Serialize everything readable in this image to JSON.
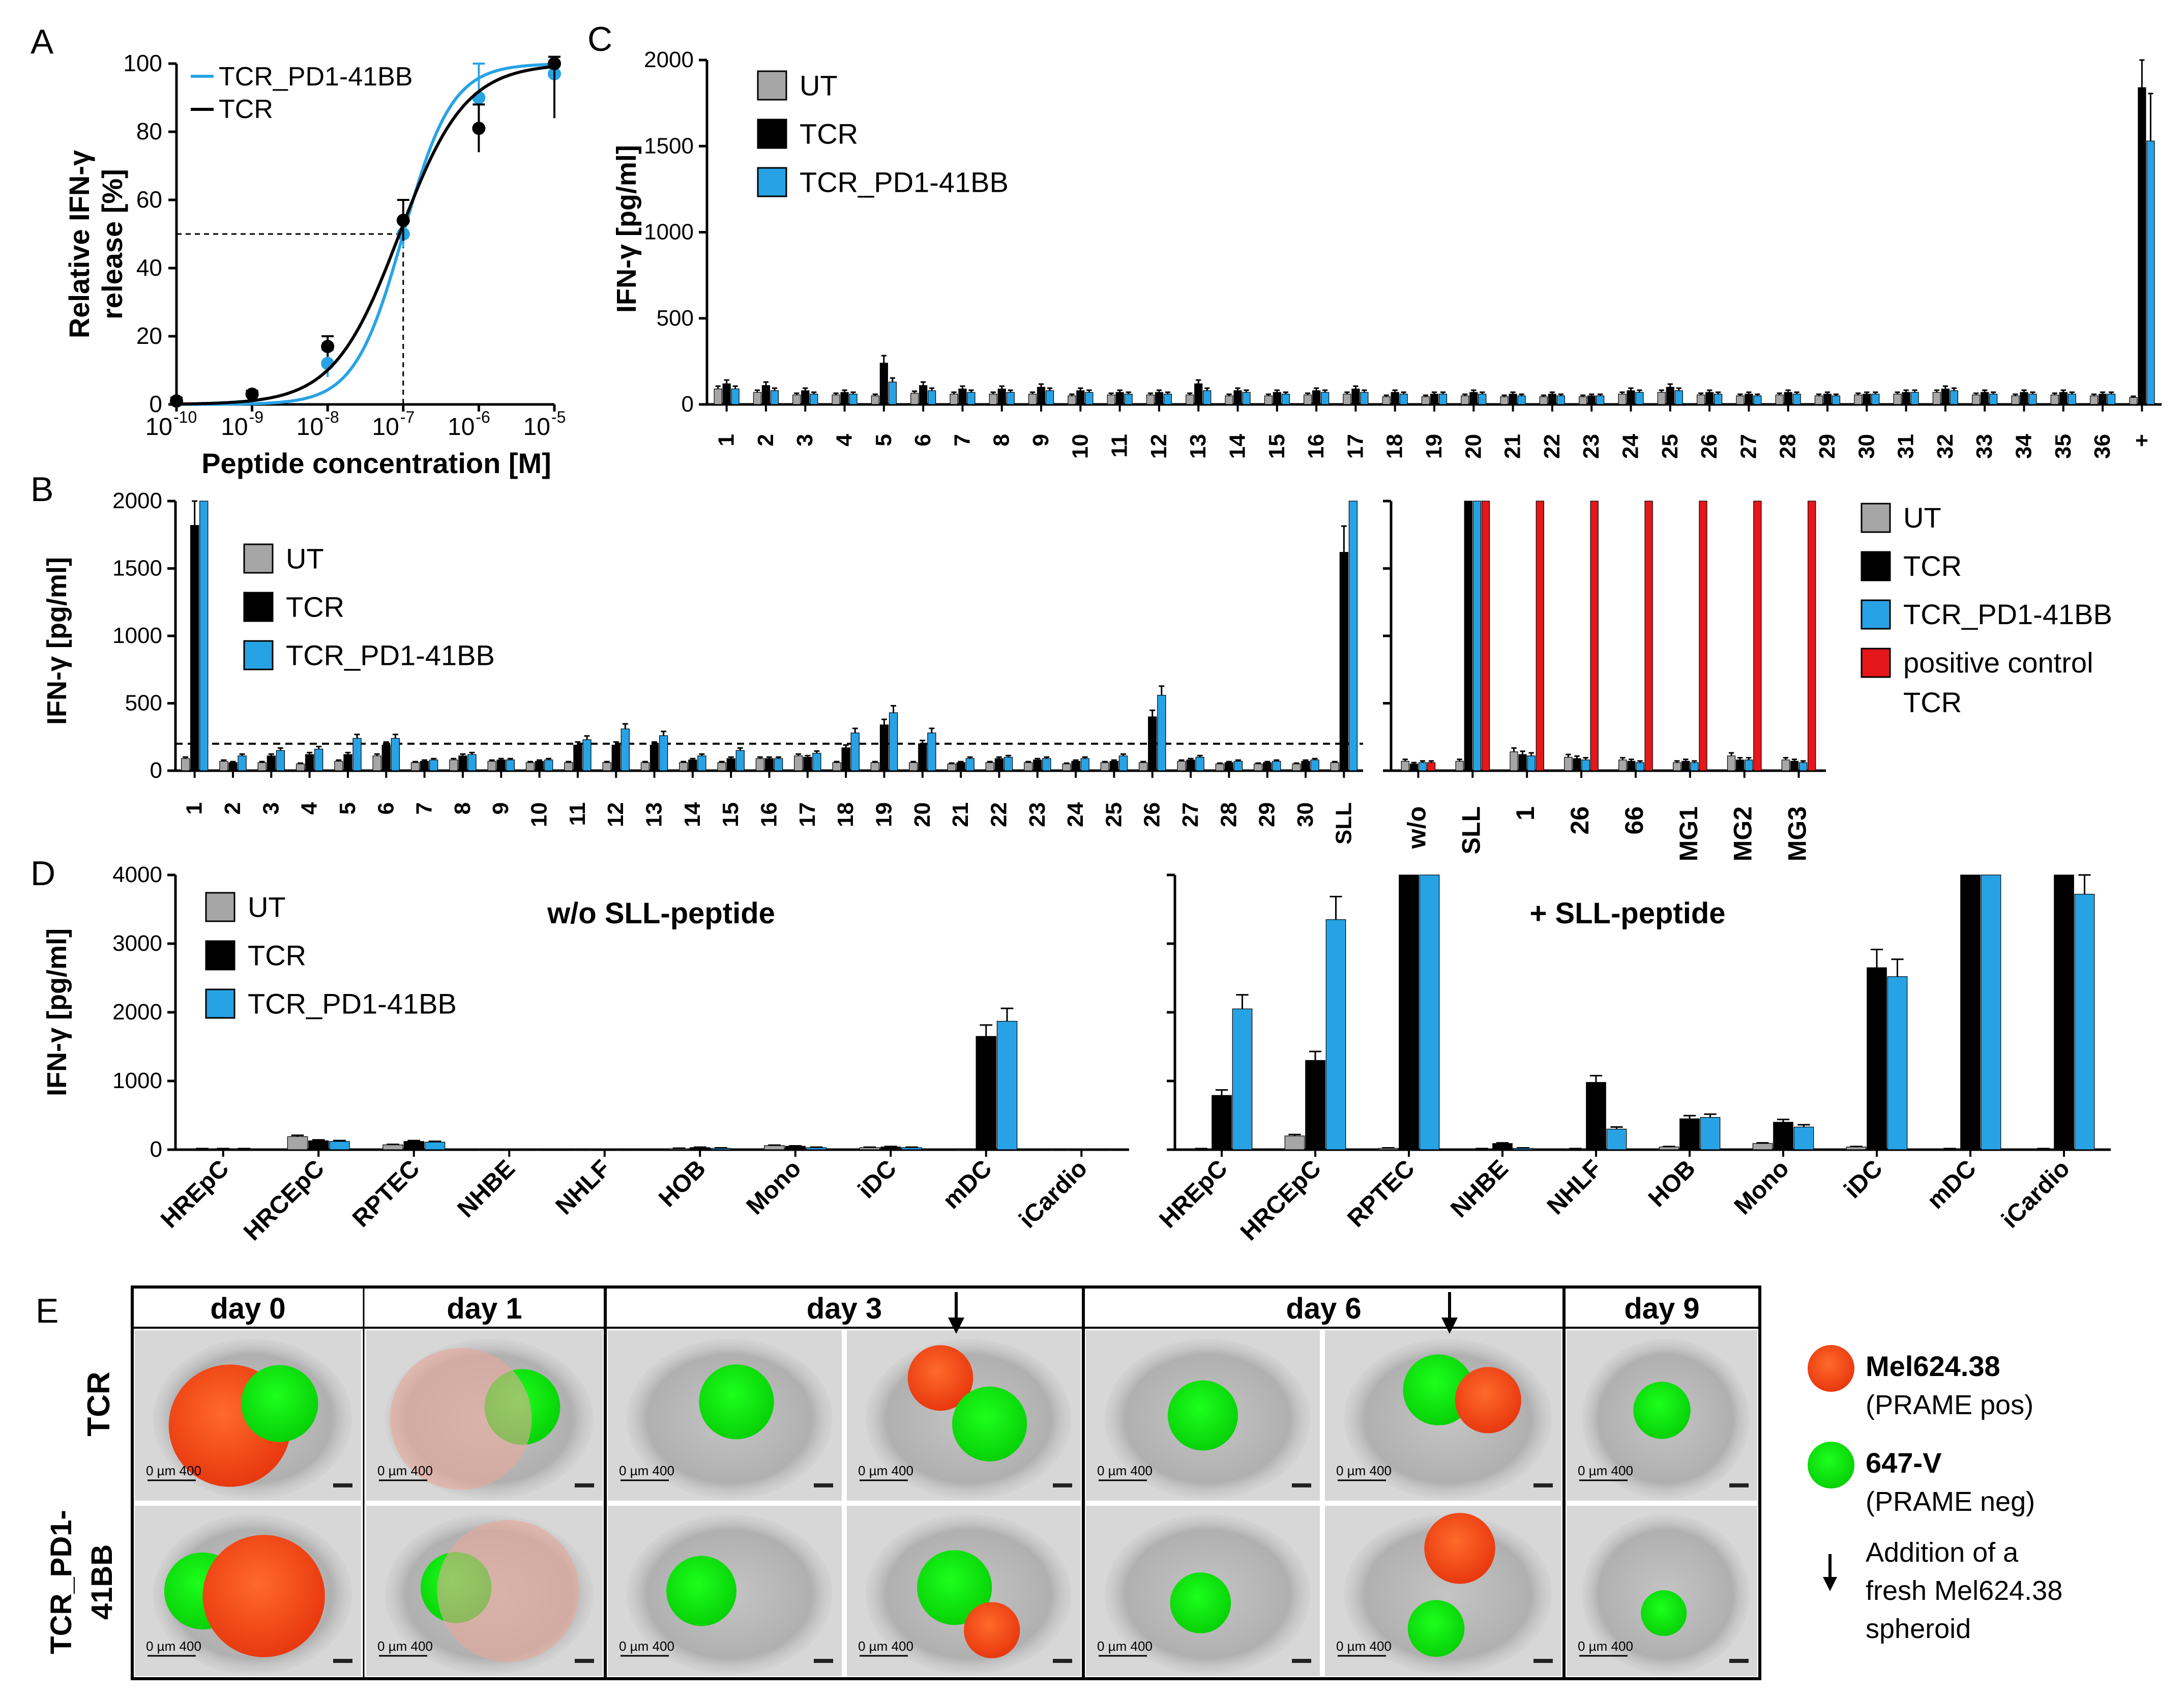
{
  "colors": {
    "ut": "#a6a6a6",
    "tcr": "#000000",
    "pd1": "#27a3e5",
    "pos": "#e5171a"
  },
  "chart_data": [
    {
      "panel": "A",
      "type": "line",
      "series": [
        {
          "name": "TCR_PD1-41BB",
          "x": [
            -10,
            -9,
            -8,
            -7,
            -6,
            -5
          ],
          "y": [
            1,
            3,
            12,
            50,
            90,
            97
          ],
          "err": [
            1,
            1,
            4,
            4,
            10,
            0
          ],
          "ec50": -7
        },
        {
          "name": "TCR",
          "x": [
            -10,
            -9,
            -8,
            -7,
            -6,
            -5
          ],
          "y": [
            1,
            3,
            17,
            54,
            81,
            100
          ],
          "err": [
            1,
            1,
            3,
            6,
            7,
            16
          ],
          "ec50": -7.05
        }
      ],
      "ylabel_line1": "Relative IFN-γ",
      "ylabel_line2": "release [%]",
      "xlabel": "Peptide concentration  [M]",
      "xticks": [
        "-10",
        "-9",
        "-8",
        "-7",
        "-6",
        "-5"
      ],
      "tick_base": "10",
      "yticks": [
        "0",
        "20",
        "40",
        "60",
        "80",
        "100"
      ],
      "ylim": [
        0,
        100
      ]
    },
    {
      "panel": "C",
      "type": "bar",
      "categories": [
        "1",
        "2",
        "3",
        "4",
        "5",
        "6",
        "7",
        "8",
        "9",
        "10",
        "11",
        "12",
        "13",
        "14",
        "15",
        "16",
        "17",
        "18",
        "19",
        "20",
        "21",
        "22",
        "23",
        "24",
        "25",
        "26",
        "27",
        "28",
        "29",
        "30",
        "31",
        "32",
        "33",
        "34",
        "35",
        "36",
        "+"
      ],
      "series": [
        {
          "name": "UT",
          "values": [
            90,
            70,
            55,
            55,
            50,
            65,
            60,
            60,
            60,
            50,
            55,
            55,
            55,
            50,
            50,
            55,
            60,
            45,
            45,
            50,
            45,
            45,
            45,
            60,
            70,
            55,
            50,
            55,
            50,
            55,
            60,
            70,
            55,
            50,
            55,
            50,
            40
          ]
        },
        {
          "name": "TCR",
          "values": [
            120,
            110,
            80,
            70,
            240,
            110,
            90,
            90,
            100,
            80,
            70,
            70,
            120,
            80,
            70,
            80,
            90,
            70,
            60,
            70,
            60,
            60,
            50,
            80,
            100,
            70,
            60,
            70,
            60,
            60,
            70,
            90,
            70,
            70,
            70,
            60,
            1840
          ]
        },
        {
          "name": "TCR_PD1-41BB",
          "values": [
            90,
            80,
            60,
            60,
            130,
            80,
            70,
            70,
            80,
            70,
            60,
            60,
            80,
            70,
            60,
            70,
            70,
            60,
            60,
            60,
            50,
            50,
            50,
            70,
            80,
            60,
            50,
            60,
            50,
            60,
            70,
            80,
            60,
            60,
            60,
            60,
            1530
          ]
        }
      ],
      "ylabel": "IFN-γ [pg/ml]",
      "yticks": [
        "0",
        "500",
        "1000",
        "1500",
        "2000"
      ],
      "ylim": [
        0,
        2000
      ]
    },
    {
      "panel": "B",
      "type": "bar",
      "categories": [
        "1",
        "2",
        "3",
        "4",
        "5",
        "6",
        "7",
        "8",
        "9",
        "10",
        "11",
        "12",
        "13",
        "14",
        "15",
        "16",
        "17",
        "18",
        "19",
        "20",
        "21",
        "22",
        "23",
        "24",
        "25",
        "26",
        "27",
        "28",
        "29",
        "30",
        "SLL"
      ],
      "series": [
        {
          "name": "UT",
          "values": [
            90,
            70,
            60,
            50,
            70,
            110,
            60,
            80,
            70,
            60,
            60,
            60,
            60,
            60,
            60,
            90,
            110,
            60,
            60,
            60,
            50,
            60,
            60,
            50,
            60,
            60,
            70,
            50,
            50,
            50,
            60
          ]
        },
        {
          "name": "TCR",
          "values": [
            1820,
            60,
            110,
            120,
            120,
            190,
            70,
            110,
            80,
            70,
            190,
            190,
            190,
            80,
            90,
            90,
            100,
            170,
            340,
            200,
            60,
            90,
            80,
            70,
            70,
            400,
            80,
            60,
            60,
            70,
            1620
          ]
        },
        {
          "name": "TCR_PD1-41BB",
          "values": [
            2000,
            110,
            150,
            160,
            240,
            240,
            80,
            120,
            80,
            80,
            230,
            310,
            260,
            110,
            150,
            90,
            130,
            280,
            430,
            280,
            90,
            100,
            90,
            90,
            110,
            560,
            100,
            70,
            70,
            80,
            2000
          ]
        }
      ],
      "threshold": 200,
      "ylabel": "IFN-γ [pg/ml]",
      "yticks": [
        "0",
        "500",
        "1000",
        "1500",
        "2000"
      ],
      "ylim": [
        0,
        2000
      ]
    },
    {
      "panel": "B2",
      "type": "bar",
      "categories": [
        "w/o",
        "SLL",
        "1",
        "26",
        "66",
        "MG1",
        "MG2",
        "MG3"
      ],
      "series": [
        {
          "name": "UT",
          "values": [
            70,
            70,
            140,
            100,
            80,
            60,
            110,
            80
          ]
        },
        {
          "name": "TCR",
          "values": [
            50,
            2000,
            120,
            90,
            70,
            70,
            80,
            70
          ]
        },
        {
          "name": "TCR_PD1-41BB",
          "values": [
            60,
            2000,
            110,
            80,
            60,
            60,
            80,
            60
          ]
        },
        {
          "name": "positive control TCR",
          "values": [
            60,
            2000,
            2000,
            2000,
            2000,
            2000,
            2000,
            2000
          ]
        }
      ],
      "ylim": [
        0,
        2000
      ]
    },
    {
      "panel": "D-left",
      "type": "bar",
      "categories": [
        "HREpC",
        "HRCEpC",
        "RPTEC",
        "NHBE",
        "NHLF",
        "HOB",
        "Mono",
        "iDC",
        "mDC",
        "iCardio"
      ],
      "series": [
        {
          "name": "UT",
          "values": [
            10,
            190,
            70,
            0,
            0,
            15,
            60,
            30,
            0,
            0
          ]
        },
        {
          "name": "TCR",
          "values": [
            10,
            130,
            120,
            0,
            0,
            30,
            50,
            40,
            1650,
            0
          ]
        },
        {
          "name": "TCR_PD1-41BB",
          "values": [
            10,
            120,
            110,
            0,
            0,
            20,
            30,
            30,
            1870,
            0
          ]
        }
      ],
      "ylabel": "IFN-γ [pg/ml]",
      "yticks": [
        "0",
        "1000",
        "2000",
        "3000",
        "4000"
      ],
      "ylim": [
        0,
        4000
      ]
    },
    {
      "panel": "D-right",
      "type": "bar",
      "categories": [
        "HREpC",
        "HRCEpC",
        "RPTEC",
        "NHBE",
        "NHLF",
        "HOB",
        "Mono",
        "iDC",
        "mDC",
        "iCardio"
      ],
      "series": [
        {
          "name": "UT",
          "values": [
            10,
            200,
            20,
            10,
            10,
            40,
            90,
            40,
            10,
            10
          ]
        },
        {
          "name": "TCR",
          "values": [
            790,
            1300,
            4000,
            90,
            980,
            450,
            400,
            2650,
            4000,
            4000
          ]
        },
        {
          "name": "TCR_PD1-41BB",
          "values": [
            2050,
            3350,
            4000,
            20,
            300,
            470,
            330,
            2520,
            4000,
            3720
          ]
        }
      ],
      "ylim": [
        0,
        4000
      ]
    }
  ],
  "figure": {
    "panelA": {
      "label": "A",
      "legend": [
        "TCR_PD1-41BB",
        "TCR"
      ]
    },
    "panelB": {
      "label": "B",
      "legend": [
        "UT",
        "TCR",
        "TCR_PD1-41BB"
      ],
      "right_legend": [
        "UT",
        "TCR",
        "TCR_PD1-41BB",
        "positive control",
        "TCR"
      ]
    },
    "panelC": {
      "label": "C",
      "legend": [
        "UT",
        "TCR",
        "TCR_PD1-41BB"
      ]
    },
    "panelD": {
      "label": "D",
      "legend": [
        "UT",
        "TCR",
        "TCR_PD1-41BB"
      ],
      "title_left": "w/o SLL-peptide",
      "title_right": "+ SLL-peptide"
    },
    "panelE": {
      "label": "E",
      "columns": [
        "day 0",
        "day 1",
        "day 3",
        "day 6",
        "day 9"
      ],
      "rows": [
        "TCR",
        "TCR_PD1-",
        "41BB"
      ],
      "scale_label": "0   µm  400",
      "legend_red_title": "Mel624.38",
      "legend_red_sub": "(PRAME pos)",
      "legend_green_title": "647-V",
      "legend_green_sub": "(PRAME neg)",
      "legend_arrow_1": "Addition of a",
      "legend_arrow_2": "fresh Mel624.38",
      "legend_arrow_3": "spheroid"
    }
  }
}
